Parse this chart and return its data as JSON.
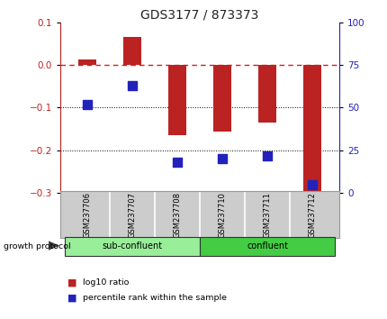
{
  "title": "GDS3177 / 873373",
  "samples": [
    "GSM237706",
    "GSM237707",
    "GSM237708",
    "GSM237710",
    "GSM237711",
    "GSM237712"
  ],
  "log10_ratio": [
    0.013,
    0.065,
    -0.165,
    -0.155,
    -0.135,
    -0.295
  ],
  "percentile_rank": [
    52,
    63,
    18,
    20,
    22,
    5
  ],
  "ylim_left": [
    -0.3,
    0.1
  ],
  "ylim_right": [
    0,
    100
  ],
  "yticks_left": [
    -0.3,
    -0.2,
    -0.1,
    0.0,
    0.1
  ],
  "yticks_right": [
    0,
    25,
    50,
    75,
    100
  ],
  "bar_color": "#bb2222",
  "dot_color": "#2222bb",
  "ref_line_y": 0.0,
  "groups": [
    {
      "label": "sub-confluent",
      "start": 0,
      "end": 3,
      "color": "#99ee99"
    },
    {
      "label": "confluent",
      "start": 3,
      "end": 6,
      "color": "#44cc44"
    }
  ],
  "group_label": "growth protocol",
  "legend_log10": "log10 ratio",
  "legend_pct": "percentile rank within the sample",
  "bar_width": 0.4,
  "dot_size": 45,
  "background_color": "#ffffff",
  "plot_bg": "#ffffff",
  "grid_color": "#000000",
  "ref_line_color": "#cc2222",
  "title_fontsize": 10,
  "tick_fontsize": 7.5,
  "label_fontsize": 7.5
}
